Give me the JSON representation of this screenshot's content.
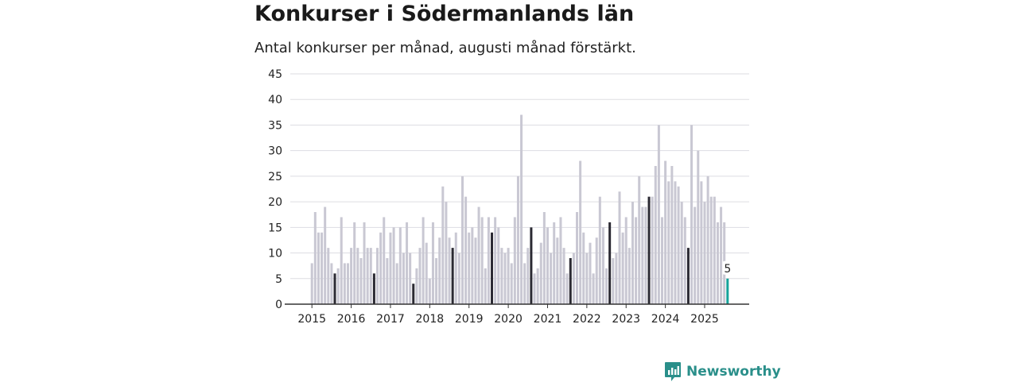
{
  "title": "Konkurser i Södermanlands län",
  "subtitle": "Antal konkurser per månad, augusti månad förstärkt.",
  "brand": "Newsworthy",
  "colors": {
    "bar": "#c9c8d3",
    "highlight": "#2b2a33",
    "latest": "#15a39a",
    "grid": "#dddde2",
    "axis": "#333333",
    "brand": "#2a8f8a"
  },
  "icons": [
    "bar-chart-speech-icon"
  ],
  "chart_data": {
    "type": "bar",
    "highlight_month": "augusti",
    "xlabel": "",
    "ylabel": "",
    "ylim": [
      0,
      45
    ],
    "yticks": [
      0,
      5,
      10,
      15,
      20,
      25,
      30,
      35,
      40,
      45
    ],
    "xticks": [
      "2015",
      "2016",
      "2017",
      "2018",
      "2019",
      "2020",
      "2021",
      "2022",
      "2023",
      "2024",
      "2025"
    ],
    "start": "2015-01",
    "end": "2025-08",
    "grid": true,
    "last_value_label": "5",
    "values": [
      8,
      18,
      14,
      14,
      19,
      11,
      8,
      6,
      7,
      17,
      8,
      8,
      11,
      16,
      11,
      9,
      16,
      11,
      11,
      6,
      11,
      14,
      17,
      9,
      14,
      15,
      8,
      15,
      10,
      16,
      10,
      4,
      7,
      11,
      17,
      12,
      5,
      16,
      9,
      13,
      23,
      20,
      13,
      11,
      14,
      10,
      25,
      21,
      14,
      15,
      13,
      19,
      17,
      7,
      17,
      14,
      17,
      15,
      11,
      10,
      11,
      8,
      17,
      25,
      37,
      8,
      11,
      15,
      6,
      7,
      12,
      18,
      15,
      10,
      16,
      13,
      17,
      11,
      6,
      9,
      10,
      18,
      28,
      14,
      10,
      12,
      6,
      13,
      21,
      15,
      7,
      16,
      9,
      10,
      22,
      14,
      17,
      11,
      20,
      17,
      25,
      19,
      19,
      21,
      21,
      27,
      35,
      17,
      28,
      24,
      27,
      24,
      23,
      20,
      17,
      11,
      35,
      19,
      30,
      24,
      20,
      25,
      21,
      21,
      16,
      19,
      16,
      5
    ]
  }
}
